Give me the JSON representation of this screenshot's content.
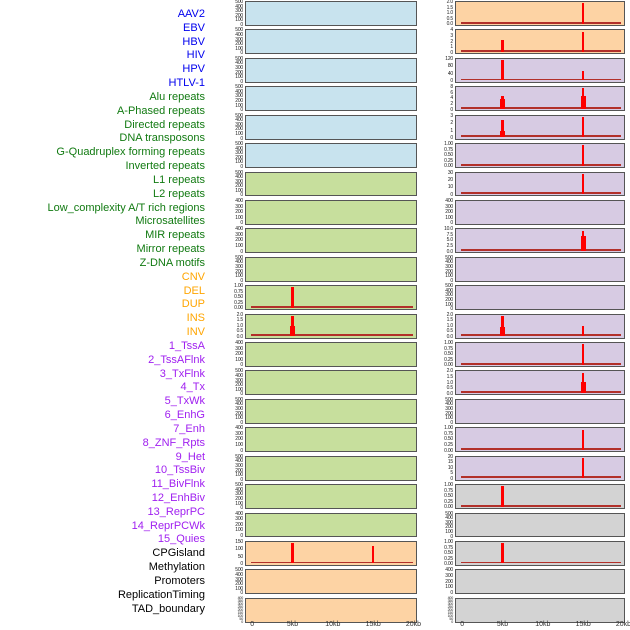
{
  "figure": {
    "kind": "multi-panel feature aggregation profiles",
    "x_axis_labels": [
      "0",
      "5kb",
      "10kb",
      "15kb",
      "20kb"
    ]
  },
  "categories": {
    "virus": {
      "label_color": "#0000EE",
      "panel_color": "#c8e3ee"
    },
    "repeat": {
      "label_color": "#117a11",
      "panel_color": "#c7df9d"
    },
    "sv": {
      "label_color": "#FFA500",
      "panel_color": "#fdd3a4"
    },
    "chromatin": {
      "label_color": "#A020F0",
      "panel_color": "#d7cbe3"
    },
    "other": {
      "label_color": "#000000",
      "panel_color": "#d3d3d3"
    }
  },
  "chart_data": {
    "type": "line",
    "x_ticks": [
      "0",
      "5kb",
      "10kb",
      "15kb",
      "20kb"
    ],
    "x_range_kb": [
      0,
      20
    ],
    "grid": false,
    "note": "44 small panels in two columns (column-major order). Red curve sits near 0 with sharp spikes; spike rel_h is height relative to panel y-max. step is a wider lower portion of the spike.",
    "spike_color": "#ff0000",
    "baseline_color": "#b2302a",
    "features": [
      {
        "name": "AAV2",
        "category": "virus",
        "column": 1,
        "row": 1,
        "y_ticks": [
          "500",
          "400",
          "300",
          "200",
          "100",
          "0"
        ],
        "baseline": false,
        "spikes": []
      },
      {
        "name": "EBV",
        "category": "virus",
        "column": 1,
        "row": 2,
        "y_ticks": [
          "500",
          "400",
          "300",
          "200",
          "100",
          "0"
        ],
        "baseline": false,
        "spikes": []
      },
      {
        "name": "HBV",
        "category": "virus",
        "column": 1,
        "row": 3,
        "y_ticks": [
          "500",
          "400",
          "300",
          "200",
          "100",
          "0"
        ],
        "baseline": false,
        "spikes": []
      },
      {
        "name": "HIV",
        "category": "virus",
        "column": 1,
        "row": 4,
        "y_ticks": [
          "500",
          "400",
          "300",
          "200",
          "100",
          "0"
        ],
        "baseline": false,
        "spikes": []
      },
      {
        "name": "HPV",
        "category": "virus",
        "column": 1,
        "row": 5,
        "y_ticks": [
          "500",
          "400",
          "300",
          "200",
          "100",
          "0"
        ],
        "baseline": false,
        "spikes": []
      },
      {
        "name": "HTLV-1",
        "category": "virus",
        "column": 1,
        "row": 6,
        "y_ticks": [
          "500",
          "400",
          "300",
          "200",
          "100",
          "0"
        ],
        "baseline": false,
        "spikes": []
      },
      {
        "name": "Alu repeats",
        "category": "repeat",
        "column": 1,
        "row": 7,
        "y_ticks": [
          "500",
          "400",
          "300",
          "200",
          "100",
          "0"
        ],
        "baseline": false,
        "spikes": []
      },
      {
        "name": "A-Phased repeats",
        "category": "repeat",
        "column": 1,
        "row": 8,
        "y_ticks": [
          "400",
          "300",
          "200",
          "100",
          "0"
        ],
        "baseline": false,
        "spikes": []
      },
      {
        "name": "Directed repeats",
        "category": "repeat",
        "column": 1,
        "row": 9,
        "y_ticks": [
          "400",
          "300",
          "200",
          "100",
          "0"
        ],
        "baseline": false,
        "spikes": []
      },
      {
        "name": "DNA transposons",
        "category": "repeat",
        "column": 1,
        "row": 10,
        "y_ticks": [
          "500",
          "400",
          "300",
          "200",
          "100",
          "0"
        ],
        "baseline": false,
        "spikes": []
      },
      {
        "name": "G-Quadruplex forming repeats",
        "category": "repeat",
        "column": 1,
        "row": 11,
        "y_ticks": [
          "1.00",
          "0.75",
          "0.50",
          "0.25",
          "0.00"
        ],
        "baseline": true,
        "spikes": [
          {
            "x_kb": 5,
            "rel_h": 1.0
          }
        ]
      },
      {
        "name": "Inverted repeats",
        "category": "repeat",
        "column": 1,
        "row": 12,
        "y_ticks": [
          "2.0",
          "1.5",
          "1.0",
          "0.5",
          "0.0"
        ],
        "baseline": true,
        "spikes": [
          {
            "x_kb": 5,
            "rel_h": 1.0,
            "step": 0.5
          }
        ]
      },
      {
        "name": "L1 repeats",
        "category": "repeat",
        "column": 1,
        "row": 13,
        "y_ticks": [
          "400",
          "300",
          "200",
          "100",
          "0"
        ],
        "baseline": false,
        "spikes": []
      },
      {
        "name": "L2 repeats",
        "category": "repeat",
        "column": 1,
        "row": 14,
        "y_ticks": [
          "500",
          "400",
          "300",
          "200",
          "100",
          "0"
        ],
        "baseline": false,
        "spikes": []
      },
      {
        "name": "Low_complexity A/T rich regions",
        "category": "repeat",
        "column": 1,
        "row": 15,
        "y_ticks": [
          "500",
          "400",
          "300",
          "200",
          "100",
          "0"
        ],
        "baseline": false,
        "spikes": []
      },
      {
        "name": "Microsatellites",
        "category": "repeat",
        "column": 1,
        "row": 16,
        "y_ticks": [
          "400",
          "300",
          "200",
          "100",
          "0"
        ],
        "baseline": false,
        "spikes": []
      },
      {
        "name": "MIR repeats",
        "category": "repeat",
        "column": 1,
        "row": 17,
        "y_ticks": [
          "500",
          "400",
          "300",
          "200",
          "100",
          "0"
        ],
        "baseline": false,
        "spikes": []
      },
      {
        "name": "Mirror repeats",
        "category": "repeat",
        "column": 1,
        "row": 18,
        "y_ticks": [
          "500",
          "400",
          "300",
          "200",
          "100",
          "0"
        ],
        "baseline": false,
        "spikes": []
      },
      {
        "name": "Z-DNA motifs",
        "category": "repeat",
        "column": 1,
        "row": 19,
        "y_ticks": [
          "400",
          "300",
          "200",
          "100",
          "0"
        ],
        "baseline": false,
        "spikes": []
      },
      {
        "name": "CNV",
        "category": "sv",
        "column": 1,
        "row": 20,
        "y_ticks": [
          "150",
          "100",
          "50",
          "0"
        ],
        "baseline": true,
        "spikes": [
          {
            "x_kb": 5,
            "rel_h": 1.0
          },
          {
            "x_kb": 15,
            "rel_h": 0.88
          }
        ]
      },
      {
        "name": "DEL",
        "category": "sv",
        "column": 1,
        "row": 21,
        "y_ticks": [
          "500",
          "400",
          "300",
          "200",
          "100",
          "0"
        ],
        "baseline": false,
        "spikes": []
      },
      {
        "name": "DUP",
        "category": "sv",
        "column": 1,
        "row": 22,
        "y_ticks": [
          "400",
          "350",
          "300",
          "250",
          "200",
          "150",
          "100",
          "50",
          "0"
        ],
        "baseline": false,
        "spikes": []
      },
      {
        "name": "INS",
        "category": "sv",
        "column": 2,
        "row": 1,
        "y_ticks": [
          "2.0",
          "1.5",
          "1.0",
          "0.5",
          "0.0"
        ],
        "baseline": true,
        "spikes": [
          {
            "x_kb": 15,
            "rel_h": 1.0
          }
        ]
      },
      {
        "name": "INV",
        "category": "sv",
        "column": 2,
        "row": 2,
        "y_ticks": [
          "4",
          "3",
          "2",
          "1",
          "0"
        ],
        "baseline": true,
        "spikes": [
          {
            "x_kb": 5,
            "rel_h": 0.6
          },
          {
            "x_kb": 15,
            "rel_h": 1.0
          }
        ]
      },
      {
        "name": "1_TssA",
        "category": "chromatin",
        "column": 2,
        "row": 3,
        "y_ticks": [
          "120",
          "80",
          "40",
          "0"
        ],
        "baseline": true,
        "spikes": [
          {
            "x_kb": 5,
            "rel_h": 1.0
          },
          {
            "x_kb": 15,
            "rel_h": 0.45
          }
        ]
      },
      {
        "name": "2_TssAFlnk",
        "category": "chromatin",
        "column": 2,
        "row": 4,
        "y_ticks": [
          "8",
          "6",
          "4",
          "2",
          "0"
        ],
        "baseline": true,
        "spikes": [
          {
            "x_kb": 5,
            "rel_h": 0.65,
            "step": 0.48
          },
          {
            "x_kb": 15,
            "rel_h": 1.0,
            "step": 0.62
          }
        ]
      },
      {
        "name": "3_TxFlnk",
        "category": "chromatin",
        "column": 2,
        "row": 5,
        "y_ticks": [
          "3",
          "2",
          "1",
          "0"
        ],
        "baseline": true,
        "spikes": [
          {
            "x_kb": 5,
            "rel_h": 0.85,
            "step": 0.3
          },
          {
            "x_kb": 15,
            "rel_h": 1.0
          }
        ]
      },
      {
        "name": "4_Tx",
        "category": "chromatin",
        "column": 2,
        "row": 6,
        "y_ticks": [
          "1.00",
          "0.75",
          "0.50",
          "0.25",
          "0.00"
        ],
        "baseline": true,
        "spikes": [
          {
            "x_kb": 15,
            "rel_h": 1.0
          }
        ]
      },
      {
        "name": "5_TxWk",
        "category": "chromatin",
        "column": 2,
        "row": 7,
        "y_ticks": [
          "30",
          "20",
          "10",
          "0"
        ],
        "baseline": true,
        "spikes": [
          {
            "x_kb": 15,
            "rel_h": 1.0
          }
        ]
      },
      {
        "name": "6_EnhG",
        "category": "chromatin",
        "column": 2,
        "row": 8,
        "y_ticks": [
          "400",
          "300",
          "200",
          "100",
          "0"
        ],
        "baseline": false,
        "spikes": []
      },
      {
        "name": "7_Enh",
        "category": "chromatin",
        "column": 2,
        "row": 9,
        "y_ticks": [
          "10.0",
          "7.5",
          "5.0",
          "2.5",
          "0.0"
        ],
        "baseline": true,
        "spikes": [
          {
            "x_kb": 15,
            "rel_h": 1.0,
            "step": 0.72
          }
        ]
      },
      {
        "name": "8_ZNF_Rpts",
        "category": "chromatin",
        "column": 2,
        "row": 10,
        "y_ticks": [
          "500",
          "400",
          "300",
          "200",
          "100",
          "0"
        ],
        "baseline": false,
        "spikes": []
      },
      {
        "name": "9_Het",
        "category": "chromatin",
        "column": 2,
        "row": 11,
        "y_ticks": [
          "500",
          "400",
          "300",
          "200",
          "100",
          "0"
        ],
        "baseline": false,
        "spikes": []
      },
      {
        "name": "10_TssBiv",
        "category": "chromatin",
        "column": 2,
        "row": 12,
        "y_ticks": [
          "2.0",
          "1.5",
          "1.0",
          "0.5",
          "0.0"
        ],
        "baseline": true,
        "spikes": [
          {
            "x_kb": 5,
            "rel_h": 1.0,
            "step": 0.45
          },
          {
            "x_kb": 15,
            "rel_h": 0.52
          }
        ]
      },
      {
        "name": "11_BivFlnk",
        "category": "chromatin",
        "column": 2,
        "row": 13,
        "y_ticks": [
          "1.00",
          "0.75",
          "0.50",
          "0.25",
          "0.00"
        ],
        "baseline": true,
        "spikes": [
          {
            "x_kb": 15,
            "rel_h": 1.0
          }
        ]
      },
      {
        "name": "12_EnhBiv",
        "category": "chromatin",
        "column": 2,
        "row": 14,
        "y_ticks": [
          "2.0",
          "1.5",
          "1.0",
          "0.5",
          "0.0"
        ],
        "baseline": true,
        "spikes": [
          {
            "x_kb": 15,
            "rel_h": 1.0,
            "step": 0.55
          }
        ]
      },
      {
        "name": "13_ReprPC",
        "category": "chromatin",
        "column": 2,
        "row": 15,
        "y_ticks": [
          "500",
          "400",
          "300",
          "200",
          "100",
          "0"
        ],
        "baseline": false,
        "spikes": []
      },
      {
        "name": "14_ReprPCWk",
        "category": "chromatin",
        "column": 2,
        "row": 16,
        "y_ticks": [
          "1.00",
          "0.75",
          "0.50",
          "0.25",
          "0.00"
        ],
        "baseline": true,
        "spikes": [
          {
            "x_kb": 15,
            "rel_h": 1.0
          }
        ]
      },
      {
        "name": "15_Quies",
        "category": "chromatin",
        "column": 2,
        "row": 17,
        "y_ticks": [
          "20",
          "15",
          "10",
          "5",
          "0"
        ],
        "baseline": true,
        "spikes": [
          {
            "x_kb": 15,
            "rel_h": 1.0
          }
        ]
      },
      {
        "name": "CPGisland",
        "category": "other",
        "column": 2,
        "row": 18,
        "y_ticks": [
          "1.00",
          "0.75",
          "0.50",
          "0.25",
          "0.00"
        ],
        "baseline": true,
        "spikes": [
          {
            "x_kb": 5,
            "rel_h": 1.0
          }
        ]
      },
      {
        "name": "Methylation",
        "category": "other",
        "column": 2,
        "row": 19,
        "y_ticks": [
          "500",
          "400",
          "300",
          "200",
          "100",
          "0"
        ],
        "baseline": false,
        "spikes": []
      },
      {
        "name": "Promoters",
        "category": "other",
        "column": 2,
        "row": 20,
        "y_ticks": [
          "1.00",
          "0.75",
          "0.50",
          "0.25",
          "0.00"
        ],
        "baseline": true,
        "spikes": [
          {
            "x_kb": 5,
            "rel_h": 1.0
          }
        ]
      },
      {
        "name": "ReplicationTiming",
        "category": "other",
        "column": 2,
        "row": 21,
        "y_ticks": [
          "400",
          "300",
          "200",
          "100",
          "0"
        ],
        "baseline": false,
        "spikes": []
      },
      {
        "name": "TAD_boundary",
        "category": "other",
        "column": 2,
        "row": 22,
        "y_ticks": [
          "400",
          "350",
          "300",
          "250",
          "200",
          "150",
          "100",
          "50",
          "0"
        ],
        "baseline": false,
        "spikes": []
      }
    ]
  }
}
